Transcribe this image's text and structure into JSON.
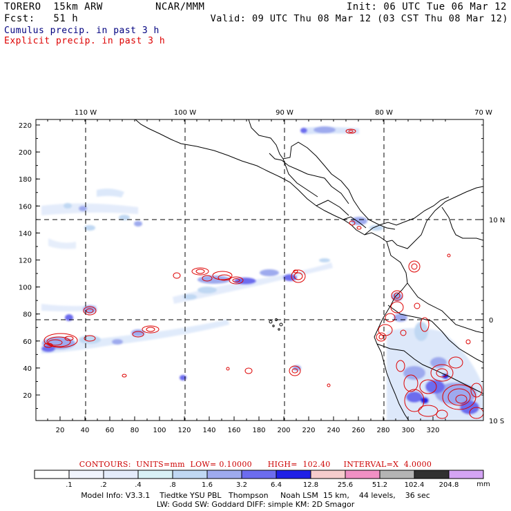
{
  "header": {
    "model_name": "TORERO  15km ARW",
    "institution": "NCAR/MMM",
    "init": "Init: 06 UTC Tue 06 Mar 12",
    "forecast": "Fcst:   51 h",
    "valid": "Valid: 09 UTC Thu 08 Mar 12 (03 CST Thu 08 Mar 12)"
  },
  "fields": {
    "cumulus": "Cumulus precip. in past 3 h",
    "explicit": "Explicit precip. in past 3 h"
  },
  "colors": {
    "cumulus_title": "#00007f",
    "explicit_title": "#dd0000",
    "contour": "#dd0000",
    "coastline": "#000000"
  },
  "map": {
    "top_labels": [
      "110 W",
      "100 W",
      "90 W",
      "80 W",
      "70 W"
    ],
    "right_labels": [
      "10 N",
      "0",
      "10 S"
    ],
    "y_ticks": [
      "220",
      "200",
      "180",
      "160",
      "140",
      "120",
      "100",
      "80",
      "60",
      "40",
      "20"
    ],
    "x_ticks": [
      "20",
      "40",
      "60",
      "80",
      "100",
      "120",
      "140",
      "160",
      "180",
      "200",
      "220",
      "240",
      "260",
      "280",
      "300",
      "320"
    ]
  },
  "legend": {
    "contour_info": "CONTOURS:  UNITS=mm  LOW= 0.10000      HIGH=  102.40     INTERVAL=X  4.0000",
    "labels": [
      ".1",
      ".2",
      ".4",
      ".8",
      "1.6",
      "3.2",
      "6.4",
      "12.8",
      "25.6",
      "51.2",
      "102.4",
      "204.8"
    ],
    "unit": "mm",
    "colors": [
      "#ffffff",
      "#f0f4fd",
      "#e4ecfb",
      "#d8f1f5",
      "#c0d8f3",
      "#9eaaee",
      "#6c6cee",
      "#2020e6",
      "#f6cccc",
      "#f090c4",
      "#b4b4b4",
      "#303030",
      "#d4a4f4"
    ]
  },
  "footer": {
    "line1": "Model Info: V3.3.1    Tiedtke YSU PBL   Thompson     Noah LSM  15 km,    44 levels,    36 sec",
    "line2": "LW: Godd SW: Goddard DIFF: simple KM: 2D Smagor"
  }
}
